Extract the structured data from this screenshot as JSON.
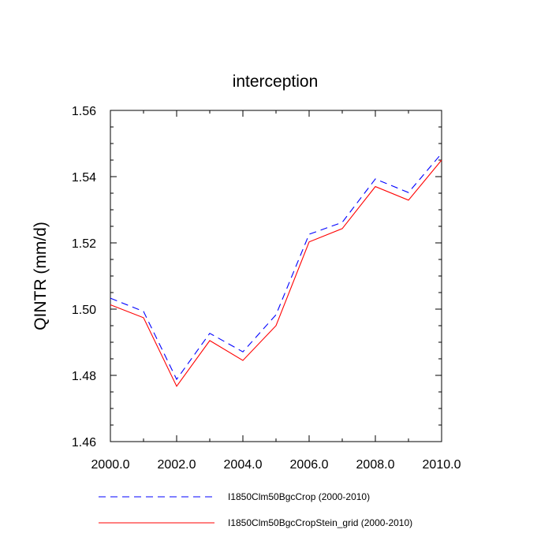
{
  "chart_data": {
    "type": "line",
    "title": "interception",
    "xlabel": "",
    "ylabel": "QINTR  (mm/d)",
    "xlim": [
      2000,
      2010
    ],
    "ylim": [
      1.46,
      1.56
    ],
    "x_ticks": [
      "2000.0",
      "2002.0",
      "2004.0",
      "2006.0",
      "2008.0",
      "2010.0"
    ],
    "y_ticks": [
      "1.46",
      "1.48",
      "1.50",
      "1.52",
      "1.54",
      "1.56"
    ],
    "grid": false,
    "legend_position": "bottom",
    "x": [
      2000,
      2001,
      2002,
      2003,
      2004,
      2005,
      2006,
      2007,
      2008,
      2009,
      2010
    ],
    "series": [
      {
        "name": "I1850Clm50BgcCrop (2000-2010)",
        "color": "#0000ff",
        "dash": "dashed",
        "values": [
          1.5033,
          1.4993,
          1.4788,
          1.4927,
          1.4871,
          1.4983,
          1.5226,
          1.5262,
          1.5393,
          1.5352,
          1.547
        ]
      },
      {
        "name": "I1850Clm50BgcCropStein_grid (2000-2010)",
        "color": "#ff0000",
        "dash": "solid",
        "values": [
          1.5013,
          1.4974,
          1.4767,
          1.4905,
          1.4845,
          1.495,
          1.5203,
          1.5243,
          1.537,
          1.5329,
          1.545
        ]
      }
    ]
  }
}
